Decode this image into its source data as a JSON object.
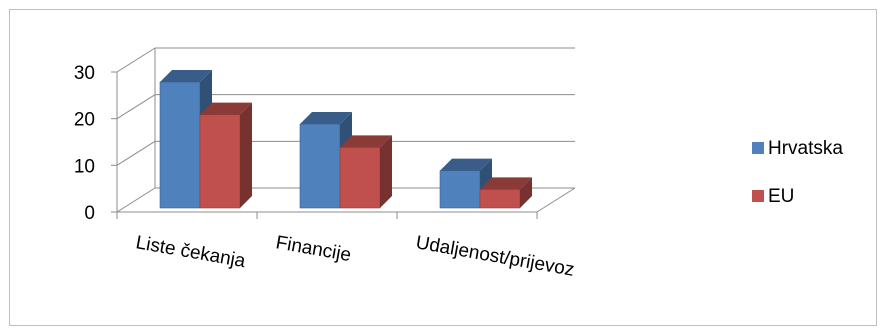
{
  "chart_data": {
    "type": "bar",
    "categories": [
      "Liste čekanja",
      "Financije",
      "Udaljenost/prijevoz"
    ],
    "series": [
      {
        "name": "Hrvatska",
        "values": [
          27,
          18,
          8
        ],
        "color": "#4f81bd"
      },
      {
        "name": "EU",
        "values": [
          20,
          13,
          4
        ],
        "color": "#c0504d"
      }
    ],
    "ylim": [
      0,
      30
    ],
    "yticks": [
      0,
      10,
      20,
      30
    ],
    "grid": true,
    "legend": "right",
    "style": "3d-clustered-column"
  }
}
